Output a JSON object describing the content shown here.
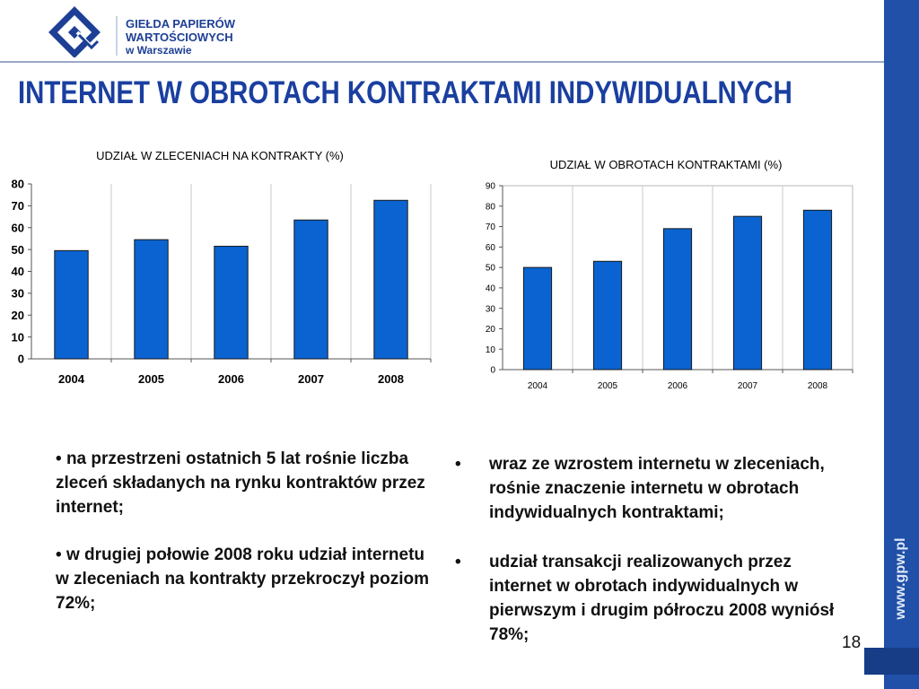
{
  "header": {
    "logo_line1": "GIEŁDA PAPIERÓW",
    "logo_line2": "WARTOŚCIOWYCH",
    "logo_line3": "w Warszawie",
    "brand_color": "#1a3fa0"
  },
  "title": "INTERNET W OBROTACH KONTRAKTAMI INDYWIDUALNYCH",
  "chart_data": [
    {
      "type": "bar",
      "title": "UDZIAŁ W ZLECENIACH NA KONTRAKTY (%)",
      "categories": [
        "2004",
        "2005",
        "2006",
        "2007",
        "2008"
      ],
      "values": [
        49.5,
        54.5,
        51.5,
        63.5,
        72.5
      ],
      "yticks": [
        "0",
        "10",
        "20",
        "30",
        "40",
        "50",
        "60",
        "70",
        "80"
      ],
      "ylim": [
        0,
        80
      ],
      "grid": "vertical",
      "bar_color": "#0a63d0"
    },
    {
      "type": "bar",
      "title": "UDZIAŁ W OBROTACH KONTRAKTAMI (%)",
      "categories": [
        "2004",
        "2005",
        "2006",
        "2007",
        "2008"
      ],
      "values": [
        50,
        53,
        69,
        75,
        78
      ],
      "yticks": [
        "0",
        "10",
        "20",
        "30",
        "40",
        "50",
        "60",
        "70",
        "80",
        "90"
      ],
      "ylim": [
        0,
        90
      ],
      "grid": "vertical",
      "bar_color": "#0a63d0"
    }
  ],
  "left_bullets": [
    {
      "marker": "•",
      "text": "na przestrzeni ostatnich 5 lat rośnie liczba zleceń składanych na rynku kontraktów przez internet;"
    },
    {
      "marker": "•",
      "text": "w drugiej połowie 2008 roku udział internetu w zleceniach na kontrakty przekroczył poziom 72%;"
    }
  ],
  "right_bullets": [
    {
      "marker": "•",
      "text": "wraz ze wzrostem  internetu w zleceniach, rośnie znaczenie internetu w obrotach indywidualnych kontraktami;"
    },
    {
      "marker": "•",
      "text": "udział transakcji realizowanych przez internet w obrotach indywidualnych w pierwszym i drugim półroczu 2008 wyniósł 78%;"
    }
  ],
  "footer": {
    "page_number": "18",
    "url": "www.gpw.pl"
  }
}
